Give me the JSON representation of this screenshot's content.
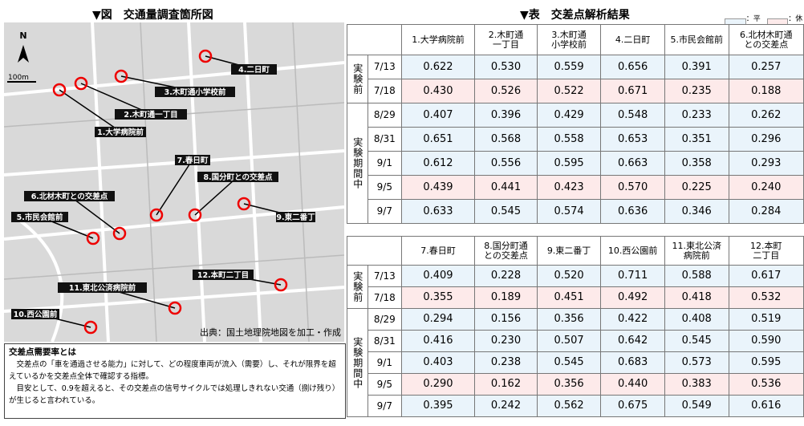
{
  "figure": {
    "title": "▼図　交通量調査箇所図",
    "north": "N",
    "scale": "100m",
    "labels": [
      "1.大学病院前",
      "2.木町通一丁目",
      "3.木町通小学校前",
      "4.二日町",
      "5.市民会館前",
      "6.北材木町との交差点",
      "7.春日町",
      "8.国分町との交差点",
      "9.東二番丁",
      "10.西公園前",
      "11.東北公済病院前",
      "12.本町二丁目"
    ],
    "source": "出典：国土地理院地図を加工・作成"
  },
  "note": {
    "title": "交差点需要率とは",
    "paragraphs": [
      "交差点の「車を通過させる能力」に対して、どの程度車両が流入（需要）し、それが限界を超えているかを交差点全体で確認する指標。",
      "目安として、0.9を超えると、その交差点の信号サイクルでは処理しきれない交通（捌け残り）が生じると言われている。"
    ]
  },
  "table_section": {
    "title": "▼表　交差点解析結果",
    "legend": [
      {
        "label": "：平日",
        "color": "#eaf4fb"
      },
      {
        "label": "：休日",
        "color": "#fdeaea"
      }
    ],
    "tables": [
      {
        "headers": [
          [
            "1.大学病院前"
          ],
          [
            "2.木町通",
            "一丁目"
          ],
          [
            "3.木町通",
            "小学校前"
          ],
          [
            "4.二日町"
          ],
          [
            "5.市民会館前"
          ],
          [
            "6.北材木町通",
            "との交差点"
          ]
        ],
        "groups": [
          {
            "label": "実験前",
            "rows": [
              {
                "date": "7/13",
                "color": "#eaf4fb",
                "values": [
                  "0.622",
                  "0.530",
                  "0.559",
                  "0.656",
                  "0.391",
                  "0.257"
                ]
              },
              {
                "date": "7/18",
                "color": "#fdeaea",
                "values": [
                  "0.430",
                  "0.526",
                  "0.522",
                  "0.671",
                  "0.235",
                  "0.188"
                ]
              }
            ]
          },
          {
            "label": "実験期間中",
            "rows": [
              {
                "date": "8/29",
                "color": "#eaf4fb",
                "values": [
                  "0.407",
                  "0.396",
                  "0.429",
                  "0.548",
                  "0.233",
                  "0.262"
                ]
              },
              {
                "date": "8/31",
                "color": "#eaf4fb",
                "values": [
                  "0.651",
                  "0.568",
                  "0.558",
                  "0.653",
                  "0.351",
                  "0.296"
                ]
              },
              {
                "date": "9/1",
                "color": "#eaf4fb",
                "values": [
                  "0.612",
                  "0.556",
                  "0.595",
                  "0.663",
                  "0.358",
                  "0.293"
                ]
              },
              {
                "date": "9/5",
                "color": "#fdeaea",
                "values": [
                  "0.439",
                  "0.441",
                  "0.423",
                  "0.570",
                  "0.225",
                  "0.240"
                ]
              },
              {
                "date": "9/7",
                "color": "#eaf4fb",
                "values": [
                  "0.633",
                  "0.545",
                  "0.574",
                  "0.636",
                  "0.346",
                  "0.284"
                ]
              }
            ]
          }
        ]
      },
      {
        "headers": [
          [
            "7.春日町"
          ],
          [
            "8.国分町通",
            "との交差点"
          ],
          [
            "9.東二番丁"
          ],
          [
            "10.西公園前"
          ],
          [
            "11.東北公済",
            "病院前"
          ],
          [
            "12.本町",
            "二丁目"
          ]
        ],
        "groups": [
          {
            "label": "実験前",
            "rows": [
              {
                "date": "7/13",
                "color": "#eaf4fb",
                "values": [
                  "0.409",
                  "0.228",
                  "0.520",
                  "0.711",
                  "0.588",
                  "0.617"
                ]
              },
              {
                "date": "7/18",
                "color": "#fdeaea",
                "values": [
                  "0.355",
                  "0.189",
                  "0.451",
                  "0.492",
                  "0.418",
                  "0.532"
                ]
              }
            ]
          },
          {
            "label": "実験期間中",
            "rows": [
              {
                "date": "8/29",
                "color": "#eaf4fb",
                "values": [
                  "0.294",
                  "0.156",
                  "0.356",
                  "0.422",
                  "0.408",
                  "0.519"
                ]
              },
              {
                "date": "8/31",
                "color": "#eaf4fb",
                "values": [
                  "0.416",
                  "0.230",
                  "0.507",
                  "0.642",
                  "0.545",
                  "0.590"
                ]
              },
              {
                "date": "9/1",
                "color": "#eaf4fb",
                "values": [
                  "0.403",
                  "0.238",
                  "0.545",
                  "0.683",
                  "0.573",
                  "0.595"
                ]
              },
              {
                "date": "9/5",
                "color": "#fdeaea",
                "values": [
                  "0.290",
                  "0.162",
                  "0.356",
                  "0.440",
                  "0.383",
                  "0.536"
                ]
              },
              {
                "date": "9/7",
                "color": "#eaf4fb",
                "values": [
                  "0.395",
                  "0.242",
                  "0.562",
                  "0.675",
                  "0.549",
                  "0.616"
                ]
              }
            ]
          }
        ]
      }
    ]
  }
}
